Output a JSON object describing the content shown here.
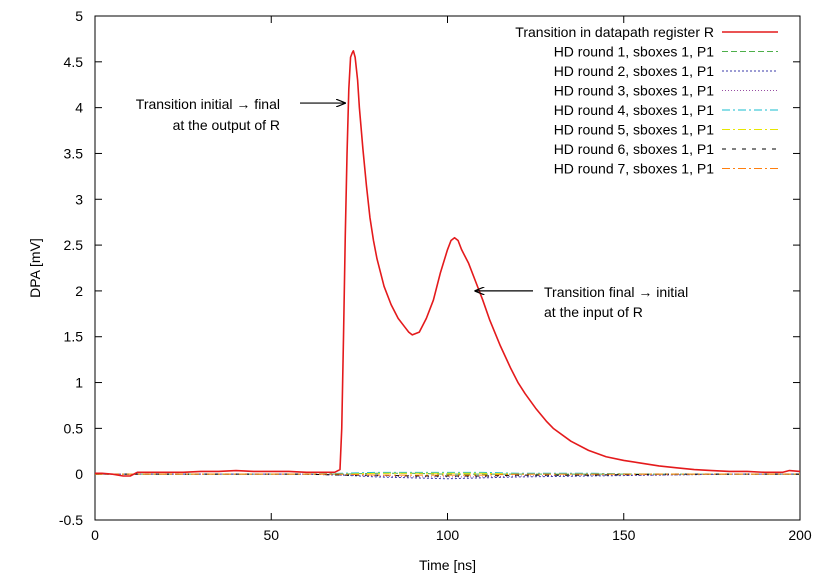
{
  "chart_data": {
    "type": "line",
    "xlabel": "Time [ns]",
    "ylabel": "DPA [mV]",
    "xlim": [
      0,
      200
    ],
    "ylim": [
      -0.5,
      5
    ],
    "x_ticks": [
      "0",
      "50",
      "100",
      "150",
      "200"
    ],
    "y_ticks": [
      "-0.5",
      "0",
      "0.5",
      "1",
      "1.5",
      "2",
      "2.5",
      "3",
      "3.5",
      "4",
      "4.5",
      "5"
    ],
    "grid": false,
    "legend_position": "top-right",
    "series": [
      {
        "name": "Transition in datapath register R",
        "color": "#e41a1c",
        "dash": "solid",
        "x": [
          0,
          2,
          5,
          8,
          10,
          12,
          15,
          20,
          25,
          30,
          35,
          40,
          45,
          50,
          55,
          60,
          65,
          68,
          69.5,
          70,
          70.5,
          71,
          71.5,
          72,
          72.5,
          73,
          73.3,
          73.8,
          74.5,
          75,
          76,
          77,
          78,
          79,
          80,
          81,
          82,
          84,
          86,
          88,
          89,
          90,
          92,
          94,
          96,
          98,
          100,
          101,
          102,
          103,
          104,
          106,
          108,
          110,
          112,
          115,
          118,
          120,
          122,
          125,
          128,
          130,
          135,
          140,
          145,
          150,
          155,
          160,
          165,
          170,
          175,
          180,
          185,
          190,
          195,
          197,
          200
        ],
        "y": [
          0.01,
          0.01,
          0.0,
          -0.02,
          -0.02,
          0.02,
          0.02,
          0.02,
          0.02,
          0.03,
          0.03,
          0.04,
          0.03,
          0.03,
          0.03,
          0.02,
          0.02,
          0.02,
          0.05,
          0.5,
          1.5,
          2.6,
          3.5,
          4.2,
          4.55,
          4.6,
          4.62,
          4.55,
          4.3,
          4.0,
          3.55,
          3.15,
          2.8,
          2.55,
          2.35,
          2.2,
          2.05,
          1.85,
          1.7,
          1.6,
          1.55,
          1.52,
          1.55,
          1.7,
          1.9,
          2.2,
          2.45,
          2.55,
          2.58,
          2.55,
          2.45,
          2.3,
          2.1,
          1.9,
          1.68,
          1.4,
          1.15,
          1.0,
          0.88,
          0.72,
          0.58,
          0.5,
          0.36,
          0.26,
          0.19,
          0.15,
          0.12,
          0.09,
          0.07,
          0.05,
          0.04,
          0.03,
          0.03,
          0.02,
          0.02,
          0.04,
          0.03
        ]
      },
      {
        "name": "HD round 1, sboxes 1, P1",
        "color": "#4daf4a",
        "dash": "6,3",
        "x": [
          0,
          20,
          40,
          60,
          70,
          80,
          90,
          100,
          110,
          120,
          140,
          160,
          180,
          200
        ],
        "y": [
          0.0,
          0.0,
          0.0,
          0.0,
          0.0,
          0.01,
          0.01,
          0.0,
          0.0,
          0.0,
          0.0,
          0.0,
          0.0,
          0.0
        ]
      },
      {
        "name": "HD round 2, sboxes 1, P1",
        "color": "#3a3aa8",
        "dash": "2,2",
        "x": [
          0,
          20,
          40,
          60,
          70,
          80,
          90,
          100,
          110,
          120,
          140,
          160,
          180,
          200
        ],
        "y": [
          0.0,
          0.0,
          0.0,
          0.0,
          -0.01,
          -0.03,
          -0.04,
          -0.05,
          -0.04,
          -0.03,
          -0.02,
          -0.01,
          0.0,
          0.0
        ]
      },
      {
        "name": "HD round 3, sboxes 1, P1",
        "color": "#984ea3",
        "dash": "1,2",
        "x": [
          0,
          20,
          40,
          60,
          70,
          80,
          90,
          100,
          110,
          120,
          140,
          160,
          180,
          200
        ],
        "y": [
          0.0,
          0.0,
          0.0,
          0.0,
          -0.01,
          -0.02,
          -0.03,
          -0.03,
          -0.03,
          -0.02,
          -0.01,
          -0.01,
          0.0,
          0.0
        ]
      },
      {
        "name": "HD round 4, sboxes 1, P1",
        "color": "#17becf",
        "dash": "8,3,2,3",
        "x": [
          0,
          20,
          40,
          60,
          70,
          80,
          90,
          100,
          110,
          120,
          140,
          160,
          180,
          200
        ],
        "y": [
          0.0,
          0.0,
          0.0,
          0.0,
          0.01,
          0.02,
          0.02,
          0.02,
          0.02,
          0.01,
          0.01,
          0.0,
          0.0,
          0.0
        ]
      },
      {
        "name": "HD round 5, sboxes 1, P1",
        "color": "#e6e600",
        "dash": "8,3,2,3",
        "x": [
          0,
          20,
          40,
          60,
          70,
          80,
          90,
          100,
          110,
          120,
          140,
          160,
          180,
          200
        ],
        "y": [
          0.0,
          0.0,
          0.0,
          0.0,
          0.0,
          0.01,
          0.01,
          0.01,
          0.01,
          0.0,
          0.0,
          0.0,
          0.0,
          0.0
        ]
      },
      {
        "name": "HD round 6, sboxes 1, P1",
        "color": "#000000",
        "dash": "4,6",
        "x": [
          0,
          20,
          40,
          60,
          70,
          80,
          90,
          100,
          110,
          120,
          140,
          160,
          180,
          200
        ],
        "y": [
          0.0,
          0.0,
          0.0,
          0.0,
          -0.01,
          -0.01,
          -0.02,
          -0.02,
          -0.02,
          -0.01,
          -0.01,
          0.0,
          0.0,
          0.0
        ]
      },
      {
        "name": "HD round 7, sboxes 1, P1",
        "color": "#ff7f0e",
        "dash": "8,3,2,3",
        "x": [
          0,
          20,
          40,
          60,
          70,
          80,
          90,
          100,
          110,
          120,
          140,
          160,
          180,
          200
        ],
        "y": [
          0.0,
          0.0,
          0.0,
          0.0,
          0.0,
          -0.01,
          -0.01,
          -0.01,
          -0.01,
          0.0,
          0.0,
          0.0,
          0.0,
          0.0
        ]
      }
    ],
    "annotations": [
      {
        "lines": [
          "Transition initial → final",
          "at the output of R"
        ],
        "target_x": 72.3,
        "target_y": 4.05
      },
      {
        "lines": [
          "Transition final → initial",
          "at the input of R"
        ],
        "target_x": 106.5,
        "target_y": 2.0
      }
    ]
  }
}
